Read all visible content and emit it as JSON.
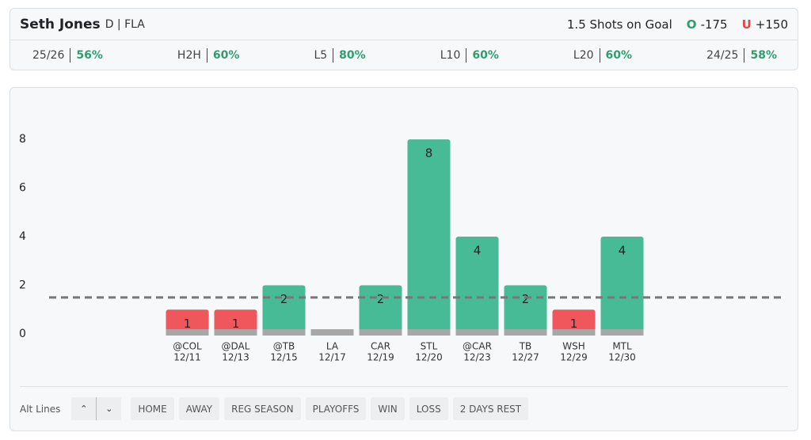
{
  "header": {
    "player": "Seth Jones",
    "position": "D | FLA",
    "market": "1.5 Shots on Goal",
    "over": {
      "label": "O",
      "odds": "-175"
    },
    "under": {
      "label": "U",
      "odds": "+150"
    }
  },
  "stats": [
    {
      "label": "25/26",
      "value": "56%"
    },
    {
      "label": "H2H",
      "value": "60%"
    },
    {
      "label": "L5",
      "value": "80%"
    },
    {
      "label": "L10",
      "value": "60%"
    },
    {
      "label": "L20",
      "value": "60%"
    },
    {
      "label": "24/25",
      "value": "58%"
    }
  ],
  "chart_data": {
    "type": "bar",
    "categories": [
      "@COL",
      "@DAL",
      "@TB",
      "LA",
      "CAR",
      "STL",
      "@CAR",
      "TB",
      "WSH",
      "MTL"
    ],
    "dates": [
      "12/11",
      "12/13",
      "12/15",
      "12/17",
      "12/19",
      "12/20",
      "12/23",
      "12/27",
      "12/29",
      "12/30"
    ],
    "values": [
      1,
      1,
      2,
      0,
      2,
      8,
      4,
      2,
      1,
      4
    ],
    "line": 1.5,
    "over_color": "#47bb95",
    "under_color": "#f0575c",
    "ylim": [
      0,
      9.5
    ],
    "yticks": [
      0,
      2,
      4,
      6,
      8
    ]
  },
  "filters": {
    "alt_lines": "Alt Lines",
    "buttons": [
      "HOME",
      "AWAY",
      "REG SEASON",
      "PLAYOFFS",
      "WIN",
      "LOSS",
      "2 DAYS REST"
    ]
  }
}
